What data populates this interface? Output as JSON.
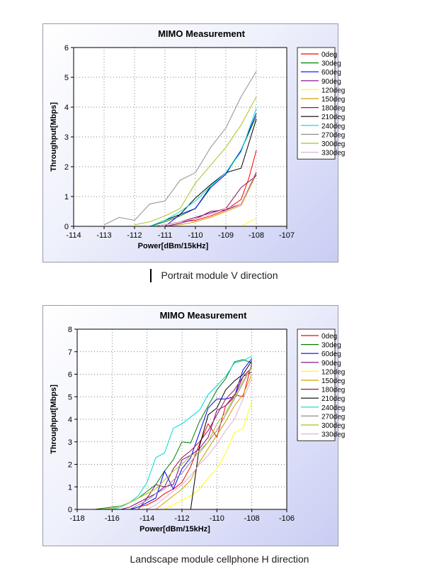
{
  "captions": [
    "Portrait module V direction",
    "Landscape module cellphone H direction"
  ],
  "chart_data": [
    {
      "type": "line",
      "title": "MIMO Measurement",
      "xlabel": "Power[dBm/15kHz]",
      "ylabel": "Throughput[Mbps]",
      "xlim": [
        -114,
        -107
      ],
      "ylim": [
        0,
        6
      ],
      "xticks": [
        -114,
        -113,
        -112,
        -111,
        -110,
        -109,
        -108,
        -107
      ],
      "yticks": [
        0,
        1,
        2,
        3,
        4,
        5,
        6
      ],
      "grid": true,
      "legend": "right",
      "series": [
        {
          "name": "0deg",
          "color": "#ff0000",
          "x": [
            -111.5,
            -111,
            -110.5,
            -110,
            -109.5,
            -109,
            -108.5,
            -108.25,
            -108
          ],
          "y": [
            0,
            0.05,
            0.15,
            0.2,
            0.35,
            0.55,
            0.9,
            1.6,
            2.55
          ]
        },
        {
          "name": "30deg",
          "color": "#008000",
          "x": [
            -111.5,
            -111,
            -110.5,
            -110,
            -109.5,
            -109,
            -108.5,
            -108
          ],
          "y": [
            0,
            0.15,
            0.35,
            0.6,
            1.35,
            1.8,
            2.55,
            3.7
          ]
        },
        {
          "name": "60deg",
          "color": "#0000ff",
          "x": [
            -111,
            -110.5,
            -110,
            -109.5,
            -109,
            -108.5,
            -108
          ],
          "y": [
            0,
            0.4,
            0.6,
            1.3,
            1.75,
            2.55,
            3.8
          ]
        },
        {
          "name": "90deg",
          "color": "#800080",
          "x": [
            -111,
            -110.5,
            -110,
            -109.5,
            -109,
            -108.5,
            -108
          ],
          "y": [
            0,
            0.1,
            0.25,
            0.5,
            0.55,
            0.75,
            1.8
          ]
        },
        {
          "name": "120deg",
          "color": "#ffff00",
          "x": [
            -108.5,
            -108.25,
            -108
          ],
          "y": [
            0,
            0.15,
            0.25
          ]
        },
        {
          "name": "150deg",
          "color": "#d0a000",
          "x": [
            -111,
            -110.5,
            -110,
            -109.5,
            -109,
            -108.5,
            -108
          ],
          "y": [
            0,
            0.05,
            0.15,
            0.3,
            0.5,
            0.7,
            1.75
          ]
        },
        {
          "name": "180deg",
          "color": "#8b1a50",
          "x": [
            -111.5,
            -111,
            -110.5,
            -110,
            -109.5,
            -109,
            -108.5,
            -108
          ],
          "y": [
            0,
            0.05,
            0.15,
            0.3,
            0.45,
            0.6,
            1.3,
            1.7
          ]
        },
        {
          "name": "210deg",
          "color": "#000000",
          "x": [
            -111.5,
            -111,
            -110.5,
            -110,
            -109.5,
            -109,
            -108.5,
            -108
          ],
          "y": [
            0,
            0.2,
            0.4,
            0.95,
            1.4,
            1.8,
            1.95,
            3.6
          ]
        },
        {
          "name": "240deg",
          "color": "#00d8d8",
          "x": [
            -111.5,
            -111,
            -110.5,
            -110,
            -109.5,
            -109,
            -108.5,
            -108
          ],
          "y": [
            0,
            0.2,
            0.5,
            0.85,
            1.35,
            1.8,
            2.5,
            3.95
          ]
        },
        {
          "name": "270deg",
          "color": "#909090",
          "x": [
            -113,
            -112.5,
            -112,
            -111.5,
            -111,
            -110.5,
            -110,
            -109.5,
            -109,
            -108.5,
            -108
          ],
          "y": [
            0.05,
            0.3,
            0.2,
            0.75,
            0.85,
            1.55,
            1.8,
            2.65,
            3.3,
            4.35,
            5.2
          ]
        },
        {
          "name": "300deg",
          "color": "#a8c020",
          "x": [
            -112,
            -111.5,
            -111,
            -110.5,
            -110,
            -109.5,
            -109,
            -108.5,
            -108
          ],
          "y": [
            0.05,
            0.15,
            0.35,
            0.6,
            1.45,
            2.05,
            2.65,
            3.4,
            4.35
          ]
        },
        {
          "name": "330deg",
          "color": "#e0b0d8",
          "x": [
            -111.5,
            -111,
            -110.5,
            -110,
            -109.5,
            -109,
            -108.5,
            -108
          ],
          "y": [
            0,
            0.05,
            0.15,
            0.25,
            0.4,
            0.6,
            0.75,
            1.85
          ]
        }
      ]
    },
    {
      "type": "line",
      "title": "MIMO Measurement",
      "xlabel": "Power[dBm/15kHz]",
      "ylabel": "Throughput[Mbps]",
      "xlim": [
        -118,
        -106
      ],
      "ylim": [
        0,
        8
      ],
      "xticks": [
        -118,
        -116,
        -114,
        -112,
        -110,
        -108,
        -106
      ],
      "yticks": [
        0,
        1,
        2,
        3,
        4,
        5,
        6,
        7,
        8
      ],
      "grid": true,
      "legend": "right",
      "series": [
        {
          "name": "0deg",
          "color": "#ff0000",
          "x": [
            -115,
            -114.5,
            -114,
            -113.5,
            -113,
            -112.5,
            -112,
            -111.5,
            -111,
            -110.5,
            -110,
            -109.5,
            -109,
            -108.5,
            -108
          ],
          "y": [
            0,
            0.1,
            0.2,
            0.4,
            0.7,
            0.9,
            1.2,
            1.9,
            2.9,
            3.8,
            3.2,
            4.6,
            5.1,
            5.0,
            6.5
          ]
        },
        {
          "name": "30deg",
          "color": "#008000",
          "x": [
            -117,
            -116.5,
            -116,
            -115.5,
            -115,
            -114.5,
            -114,
            -113.5,
            -113,
            -112.5,
            -112,
            -111.5,
            -111,
            -110.5,
            -110,
            -109.5,
            -109,
            -108.5,
            -108
          ],
          "y": [
            0,
            0.05,
            0.1,
            0.15,
            0.3,
            0.5,
            0.8,
            1.1,
            1.7,
            2.2,
            3.0,
            2.95,
            3.9,
            4.6,
            5.3,
            5.8,
            6.55,
            6.65,
            6.5
          ]
        },
        {
          "name": "60deg",
          "color": "#0000ff",
          "x": [
            -115,
            -114.5,
            -114,
            -113.5,
            -113,
            -112.5,
            -112,
            -111.5,
            -111,
            -110.5,
            -110,
            -109.5,
            -109,
            -108.5,
            -108
          ],
          "y": [
            0,
            0.1,
            0.3,
            0.5,
            1.7,
            0.9,
            1.8,
            2.3,
            3.4,
            4.5,
            4.9,
            4.9,
            5.0,
            6.2,
            6.7
          ]
        },
        {
          "name": "90deg",
          "color": "#800080",
          "x": [
            -115.5,
            -115,
            -114.5,
            -114,
            -113.5,
            -113,
            -112.5,
            -112,
            -111.5,
            -111,
            -110.5,
            -110,
            -109.5,
            -109,
            -108.5,
            -108
          ],
          "y": [
            0,
            0.1,
            0.3,
            0.5,
            0.7,
            1.0,
            1.1,
            2.2,
            2.4,
            2.7,
            3.2,
            4.4,
            4.6,
            5.0,
            5.9,
            6.3
          ]
        },
        {
          "name": "120deg",
          "color": "#ffff00",
          "x": [
            -113,
            -112.5,
            -112,
            -111.5,
            -111,
            -110.5,
            -110,
            -109.5,
            -109,
            -108.5,
            -108
          ],
          "y": [
            0,
            0.2,
            0.4,
            0.6,
            0.9,
            1.4,
            1.8,
            2.5,
            3.4,
            3.6,
            4.8
          ]
        },
        {
          "name": "150deg",
          "color": "#d0a000",
          "x": [
            -113.5,
            -113,
            -112.5,
            -112,
            -111.5,
            -111,
            -110.5,
            -110,
            -109.5,
            -109,
            -108.5,
            -108
          ],
          "y": [
            0,
            0.3,
            0.6,
            0.9,
            1.3,
            2.1,
            2.7,
            3.3,
            3.9,
            4.6,
            5.1,
            6.0
          ]
        },
        {
          "name": "180deg",
          "color": "#8b1a50",
          "x": [
            -114.5,
            -114,
            -113.5,
            -113,
            -112.5,
            -112,
            -111.5,
            -111,
            -110.5,
            -110,
            -109.5,
            -109,
            -108.5,
            -108
          ],
          "y": [
            0,
            0.5,
            1.1,
            1.0,
            1.8,
            2.3,
            2.6,
            3.0,
            3.5,
            4.2,
            4.9,
            5.3,
            5.9,
            6.1
          ]
        },
        {
          "name": "210deg",
          "color": "#000000",
          "x": [
            -111.5,
            -111,
            -110.5,
            -110,
            -109.5,
            -109,
            -108.5,
            -108
          ],
          "y": [
            0,
            2.8,
            4.2,
            4.5,
            5.3,
            5.7,
            6.0,
            6.6
          ]
        },
        {
          "name": "240deg",
          "color": "#00d8d8",
          "x": [
            -116,
            -115.5,
            -115,
            -114.5,
            -114,
            -113.5,
            -113,
            -112.5,
            -112,
            -111.5,
            -111,
            -110.5,
            -110,
            -109.5,
            -109,
            -108.5,
            -108
          ],
          "y": [
            0,
            0.1,
            0.3,
            0.6,
            1.2,
            2.3,
            2.5,
            3.6,
            3.8,
            4.1,
            4.4,
            5.1,
            5.5,
            5.9,
            6.5,
            6.6,
            6.8
          ]
        },
        {
          "name": "270deg",
          "color": "#909090",
          "x": [
            -115,
            -114.5,
            -114,
            -113.5,
            -113,
            -112.5,
            -112,
            -111.5,
            -111,
            -110.5,
            -110,
            -109.5,
            -109,
            -108.5,
            -108
          ],
          "y": [
            0,
            0.2,
            0.4,
            0.7,
            0.9,
            1.3,
            1.6,
            2.1,
            2.6,
            3.0,
            3.5,
            4.2,
            4.9,
            5.6,
            6.4
          ]
        },
        {
          "name": "300deg",
          "color": "#a8c020",
          "x": [
            -116.5,
            -116,
            -115.5,
            -115,
            -114.5,
            -114,
            -113.5,
            -113,
            -112.5,
            -112,
            -111.5,
            -111,
            -110.5,
            -110,
            -109.5,
            -109,
            -108.5,
            -108
          ],
          "y": [
            0,
            0.05,
            0.15,
            0.3,
            0.5,
            0.7,
            0.9,
            1.3,
            1.7,
            2.0,
            2.4,
            2.5,
            3.0,
            3.8,
            4.3,
            5.0,
            5.7,
            6.3
          ]
        },
        {
          "name": "330deg",
          "color": "#e0b0d8",
          "x": [
            -114,
            -113.5,
            -113,
            -112.5,
            -112,
            -111.5,
            -111,
            -110.5,
            -110,
            -109.5,
            -109,
            -108.5,
            -108
          ],
          "y": [
            0,
            0.2,
            0.5,
            0.8,
            1.1,
            1.5,
            2.0,
            2.4,
            2.9,
            3.5,
            4.0,
            4.9,
            5.8
          ]
        }
      ]
    }
  ]
}
